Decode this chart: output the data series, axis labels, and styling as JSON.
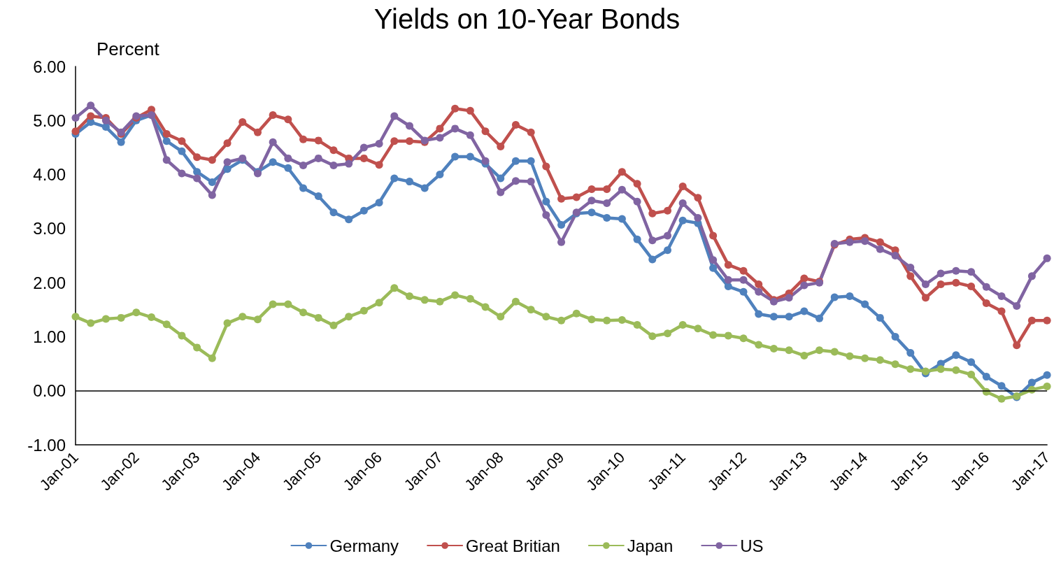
{
  "chart_data": {
    "type": "line",
    "title": "Yields on 10-Year Bonds",
    "ylabel": "Percent",
    "categories": [
      "Jan-01",
      null,
      null,
      null,
      "Jan-02",
      null,
      null,
      null,
      "Jan-03",
      null,
      null,
      null,
      "Jan-04",
      null,
      null,
      null,
      "Jan-05",
      null,
      null,
      null,
      "Jan-06",
      null,
      null,
      null,
      "Jan-07",
      null,
      null,
      null,
      "Jan-08",
      null,
      null,
      null,
      "Jan-09",
      null,
      null,
      null,
      "Jan-10",
      null,
      null,
      null,
      "Jan-11",
      null,
      null,
      null,
      "Jan-12",
      null,
      null,
      null,
      "Jan-13",
      null,
      null,
      null,
      "Jan-14",
      null,
      null,
      null,
      "Jan-15",
      null,
      null,
      null,
      "Jan-16",
      null,
      null,
      null,
      "Jan-17"
    ],
    "series": [
      {
        "name": "Germany",
        "color": "#4f81bd",
        "values": [
          4.75,
          4.97,
          4.88,
          4.6,
          5.0,
          5.1,
          4.62,
          4.43,
          4.05,
          3.86,
          4.1,
          4.27,
          4.05,
          4.23,
          4.12,
          3.75,
          3.6,
          3.3,
          3.17,
          3.33,
          3.48,
          3.93,
          3.87,
          3.75,
          4.0,
          4.33,
          4.33,
          4.2,
          3.93,
          4.25,
          4.25,
          3.5,
          3.07,
          3.28,
          3.3,
          3.2,
          3.18,
          2.8,
          2.43,
          2.6,
          3.15,
          3.1,
          2.27,
          1.93,
          1.83,
          1.42,
          1.37,
          1.37,
          1.47,
          1.34,
          1.73,
          1.75,
          1.6,
          1.35,
          1.0,
          0.7,
          0.32,
          0.5,
          0.66,
          0.53,
          0.26,
          0.09,
          -0.12,
          0.15,
          0.29
        ]
      },
      {
        "name": "Great Britian",
        "color": "#c0504d",
        "values": [
          4.8,
          5.08,
          5.05,
          4.75,
          5.05,
          5.2,
          4.75,
          4.62,
          4.32,
          4.27,
          4.58,
          4.97,
          4.78,
          5.1,
          5.02,
          4.65,
          4.63,
          4.45,
          4.3,
          4.3,
          4.18,
          4.62,
          4.62,
          4.6,
          4.85,
          5.22,
          5.18,
          4.8,
          4.52,
          4.92,
          4.78,
          4.15,
          3.55,
          3.58,
          3.73,
          3.73,
          4.05,
          3.83,
          3.28,
          3.33,
          3.78,
          3.57,
          2.87,
          2.33,
          2.22,
          1.97,
          1.68,
          1.8,
          2.08,
          2.02,
          2.7,
          2.8,
          2.83,
          2.75,
          2.6,
          2.12,
          1.72,
          1.97,
          2.0,
          1.93,
          1.62,
          1.47,
          0.84,
          1.3,
          1.3
        ]
      },
      {
        "name": "Japan",
        "color": "#9bbb59",
        "values": [
          1.37,
          1.25,
          1.33,
          1.35,
          1.45,
          1.36,
          1.23,
          1.02,
          0.8,
          0.6,
          1.25,
          1.37,
          1.32,
          1.6,
          1.6,
          1.45,
          1.35,
          1.21,
          1.37,
          1.48,
          1.63,
          1.9,
          1.75,
          1.68,
          1.65,
          1.77,
          1.7,
          1.55,
          1.37,
          1.65,
          1.5,
          1.37,
          1.3,
          1.43,
          1.32,
          1.3,
          1.31,
          1.22,
          1.01,
          1.06,
          1.22,
          1.15,
          1.03,
          1.02,
          0.97,
          0.85,
          0.78,
          0.75,
          0.65,
          0.75,
          0.72,
          0.64,
          0.6,
          0.57,
          0.49,
          0.4,
          0.36,
          0.4,
          0.38,
          0.3,
          -0.02,
          -0.15,
          -0.1,
          0.02,
          0.08
        ]
      },
      {
        "name": "US",
        "color": "#8064a2",
        "values": [
          5.05,
          5.28,
          5.0,
          4.78,
          5.08,
          5.1,
          4.27,
          4.02,
          3.93,
          3.62,
          4.23,
          4.3,
          4.02,
          4.6,
          4.3,
          4.17,
          4.3,
          4.17,
          4.2,
          4.5,
          4.57,
          5.08,
          4.9,
          4.63,
          4.68,
          4.85,
          4.73,
          4.25,
          3.67,
          3.88,
          3.87,
          3.25,
          2.75,
          3.3,
          3.52,
          3.47,
          3.72,
          3.5,
          2.78,
          2.87,
          3.47,
          3.2,
          2.42,
          2.05,
          2.05,
          1.83,
          1.65,
          1.72,
          1.95,
          2.0,
          2.72,
          2.75,
          2.77,
          2.62,
          2.5,
          2.28,
          1.97,
          2.17,
          2.22,
          2.2,
          1.92,
          1.75,
          1.57,
          2.12,
          2.45
        ]
      }
    ],
    "ylim": [
      -1,
      6
    ],
    "yticks": [
      {
        "value": -1,
        "label": "-1.00"
      },
      {
        "value": 0,
        "label": "0.00"
      },
      {
        "value": 1,
        "label": "1.00"
      },
      {
        "value": 2,
        "label": "2.00"
      },
      {
        "value": 3,
        "label": "3.00"
      },
      {
        "value": 4,
        "label": "4.00"
      },
      {
        "value": 5,
        "label": "5.00"
      },
      {
        "value": 6,
        "label": "6.00"
      }
    ],
    "ref_lines": [
      {
        "axis": "y",
        "value": 0,
        "color": "#000000",
        "line_style": "solid"
      }
    ],
    "grid": false,
    "legend": "bottom",
    "marker": "circle",
    "line_style": "solid"
  }
}
